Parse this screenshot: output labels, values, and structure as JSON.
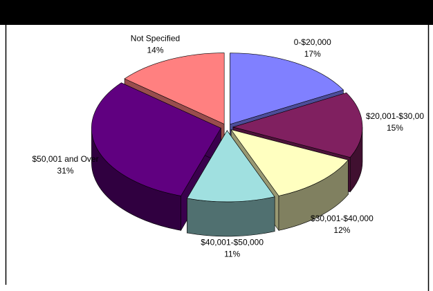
{
  "chart_data": {
    "type": "pie3d",
    "categories": [
      "0-$20,000",
      "$20,001-$30,00",
      "$30,001-$40,000",
      "$40,001-$50,000",
      "$50,001 and Over",
      "Not Specified"
    ],
    "values": [
      17,
      15,
      12,
      11,
      31,
      14
    ],
    "value_labels": [
      "17%",
      "15%",
      "12%",
      "11%",
      "31%",
      "14%"
    ],
    "colors": [
      "#8080ff",
      "#802060",
      "#ffffc0",
      "#a0e0e0",
      "#600080",
      "#ff8080"
    ]
  }
}
